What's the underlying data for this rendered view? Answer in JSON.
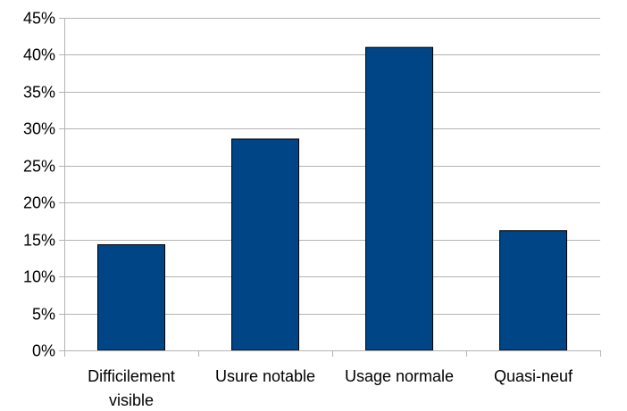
{
  "chart_data": {
    "type": "bar",
    "title": "",
    "xlabel": "",
    "ylabel": "",
    "categories": [
      [
        "Difficilement",
        "visible"
      ],
      [
        "Usure notable"
      ],
      [
        "Usage normale"
      ],
      [
        "Quasi-neuf"
      ]
    ],
    "values": [
      14.3,
      28.6,
      41.0,
      16.2
    ],
    "ylim": [
      0,
      45
    ],
    "yticks": [
      {
        "value": 0,
        "label": "0%"
      },
      {
        "value": 5,
        "label": "5%"
      },
      {
        "value": 10,
        "label": "10%"
      },
      {
        "value": 15,
        "label": "15%"
      },
      {
        "value": 20,
        "label": "20%"
      },
      {
        "value": 25,
        "label": "25%"
      },
      {
        "value": 30,
        "label": "30%"
      },
      {
        "value": 35,
        "label": "35%"
      },
      {
        "value": 40,
        "label": "40%"
      },
      {
        "value": 45,
        "label": "45%"
      }
    ],
    "grid": true,
    "legend": "none",
    "colors": {
      "bar_fill": "#004586",
      "bar_stroke": "#000000",
      "grid": "#b3b3b3",
      "axis": "#b3b3b3"
    }
  }
}
